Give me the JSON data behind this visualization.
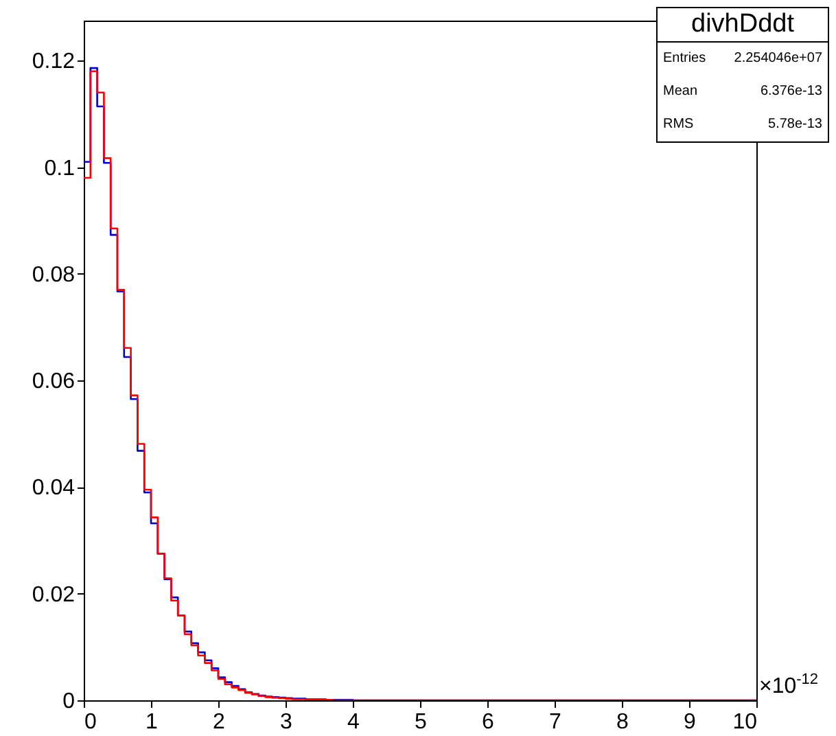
{
  "chart_data": {
    "type": "histogram",
    "title": "divhDddt",
    "bins": [
      0,
      0.1,
      0.2,
      0.3,
      0.4,
      0.5,
      0.6,
      0.7,
      0.8,
      0.9,
      1,
      1.1,
      1.2,
      1.3,
      1.4,
      1.5,
      1.6,
      1.7,
      1.8,
      1.9,
      2,
      2.1,
      2.2,
      2.3,
      2.4,
      2.5,
      2.6,
      2.7,
      2.8,
      2.9,
      3,
      3.1,
      3.2,
      3.3,
      3.4,
      3.5,
      3.6,
      3.7,
      3.8,
      3.9,
      4,
      4.1,
      4.2,
      4.3,
      4.4,
      4.5,
      4.6,
      4.7,
      4.8,
      4.9,
      5,
      5.1,
      5.2,
      5.3,
      5.4,
      5.5,
      5.6,
      5.7,
      5.8,
      5.9,
      6,
      6.1,
      6.2,
      6.3,
      6.4,
      6.5,
      6.6,
      6.7,
      6.8,
      6.9,
      7,
      7.1,
      7.2,
      7.3,
      7.4,
      7.5,
      7.6,
      7.7,
      7.8,
      7.9,
      8,
      8.1,
      8.2,
      8.3,
      8.4,
      8.5,
      8.6,
      8.7,
      8.8,
      8.9,
      9,
      9.1,
      9.2,
      9.3,
      9.4,
      9.5,
      9.6,
      9.7,
      9.8,
      9.9,
      10
    ],
    "series": [
      {
        "color": "#0000cc",
        "values": [
          0.101,
          0.1186,
          0.1114,
          0.1008,
          0.0873,
          0.0767,
          0.0644,
          0.0565,
          0.0468,
          0.039,
          0.0332,
          0.0275,
          0.0227,
          0.0193,
          0.0159,
          0.0129,
          0.0107,
          0.009,
          0.0075,
          0.006,
          0.0043,
          0.0034,
          0.0027,
          0.0021,
          0.0015,
          0.0012,
          0.0009,
          0.0007,
          0.0006,
          0.0005,
          0.0004,
          0.0003,
          0.0003,
          0.0002,
          0.0002,
          0.0002,
          0.0001,
          0.0001,
          0.0001,
          0.0001,
          0,
          0,
          0,
          0,
          0,
          0,
          0,
          0,
          0,
          0,
          0,
          0,
          0,
          0,
          0,
          0,
          0,
          0,
          0,
          0,
          0,
          0,
          0,
          0,
          0,
          0,
          0,
          0,
          0,
          0,
          0,
          0,
          0,
          0,
          0,
          0,
          0,
          0,
          0,
          0,
          0,
          0,
          0,
          0,
          0,
          0,
          0,
          0,
          0,
          0,
          0,
          0,
          0,
          0,
          0,
          0,
          0,
          0,
          0,
          0
        ]
      },
      {
        "color": "#ff0000",
        "values": [
          0.098,
          0.118,
          0.114,
          0.1017,
          0.0885,
          0.077,
          0.0661,
          0.0572,
          0.0481,
          0.0395,
          0.0343,
          0.0275,
          0.0229,
          0.0187,
          0.0159,
          0.0124,
          0.0103,
          0.0084,
          0.007,
          0.0056,
          0.004,
          0.003,
          0.0024,
          0.0019,
          0.0014,
          0.0011,
          0.0008,
          0.0006,
          0.0005,
          0.0004,
          0.0003,
          0.0002,
          0.0002,
          0.0001,
          0.0001,
          0.0001,
          0.0001,
          0,
          0,
          0,
          0,
          0,
          0,
          0,
          0,
          0,
          0,
          0,
          0,
          0,
          0,
          0,
          0,
          0,
          0,
          0,
          0,
          0,
          0,
          0,
          0,
          0,
          0,
          0,
          0,
          0,
          0,
          0,
          0,
          0,
          0,
          0,
          0,
          0,
          0,
          0,
          0,
          0,
          0,
          0,
          0,
          0,
          0,
          0,
          0,
          0,
          0,
          0,
          0,
          0,
          0,
          0,
          0,
          0,
          0,
          0,
          0,
          0,
          0,
          0
        ]
      }
    ],
    "xlim": [
      0,
      10
    ],
    "xticks": [
      0,
      1,
      2,
      3,
      4,
      5,
      6,
      7,
      8,
      9,
      10
    ],
    "ylim": [
      0,
      0.1275
    ],
    "yticks": [
      0,
      0.02,
      0.04,
      0.06,
      0.08,
      0.1,
      0.12
    ],
    "annotations": [
      "Entries",
      "2.254046e+07",
      "Mean",
      "6.376e-13",
      "RMS",
      "5.78e-13",
      "×10$^{-12}$"
    ]
  }
}
